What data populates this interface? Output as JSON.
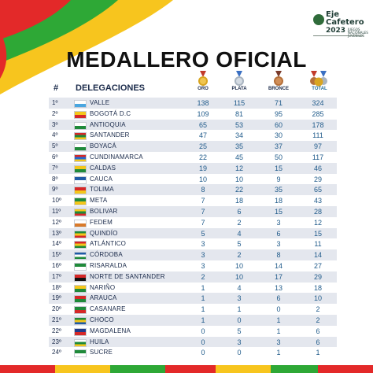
{
  "header": {
    "logo_line1": "Eje",
    "logo_line2": "Cafetero",
    "logo_line3": "2023",
    "logo_small": "JUEGOS NACIONALES JUVENILES",
    "title": "MEDALLERO OFICIAL"
  },
  "columns": {
    "hash": "#",
    "delegations": "DELEGACIONES",
    "oro": "ORO",
    "plata": "PLATA",
    "bronce": "BRONCE",
    "total": "TOTAL"
  },
  "colors": {
    "gold": "#d9a521",
    "silver": "#b8c2cc",
    "bronze": "#b5703a",
    "stripe_red": "#e32929",
    "stripe_green": "#2ea836",
    "stripe_yellow": "#f7c51e",
    "number_blue": "#1f5a8a"
  },
  "rows": [
    {
      "rank": "1º",
      "name": "VALLE",
      "oro": "138",
      "plata": "115",
      "bronce": "71",
      "total": "324",
      "flag": [
        "#ffffff",
        "#4aa6e0"
      ]
    },
    {
      "rank": "2º",
      "name": "BOGOTÁ D.C",
      "oro": "109",
      "plata": "81",
      "bronce": "95",
      "total": "285",
      "flag": [
        "#f4c61b",
        "#d62828"
      ]
    },
    {
      "rank": "3º",
      "name": "ANTIOQUIA",
      "oro": "65",
      "plata": "53",
      "bronce": "60",
      "total": "178",
      "flag": [
        "#ffffff",
        "#1f8a3a"
      ]
    },
    {
      "rank": "4º",
      "name": "SANTANDER",
      "oro": "47",
      "plata": "34",
      "bronce": "30",
      "total": "111",
      "flag": [
        "#d62828",
        "#1f8a3a",
        "#f4c61b"
      ]
    },
    {
      "rank": "5º",
      "name": "BOYACÁ",
      "oro": "25",
      "plata": "35",
      "bronce": "37",
      "total": "97",
      "flag": [
        "#ffffff",
        "#1f8a3a"
      ]
    },
    {
      "rank": "6º",
      "name": "CUNDINAMARCA",
      "oro": "22",
      "plata": "45",
      "bronce": "50",
      "total": "117",
      "flag": [
        "#d62828",
        "#1f6bd6",
        "#f4c61b"
      ]
    },
    {
      "rank": "7º",
      "name": "CALDAS",
      "oro": "19",
      "plata": "12",
      "bronce": "15",
      "total": "46",
      "flag": [
        "#f4c61b",
        "#1f8a3a"
      ]
    },
    {
      "rank": "8º",
      "name": "CAUCA",
      "oro": "10",
      "plata": "10",
      "bronce": "9",
      "total": "29",
      "flag": [
        "#1f5aa6",
        "#ffffff"
      ]
    },
    {
      "rank": "9º",
      "name": "TOLIMA",
      "oro": "8",
      "plata": "22",
      "bronce": "35",
      "total": "65",
      "flag": [
        "#d62828",
        "#f4c61b"
      ]
    },
    {
      "rank": "10º",
      "name": "META",
      "oro": "7",
      "plata": "18",
      "bronce": "18",
      "total": "43",
      "flag": [
        "#1f8a3a",
        "#f4c61b"
      ]
    },
    {
      "rank": "11º",
      "name": "BOLIVAR",
      "oro": "7",
      "plata": "6",
      "bronce": "15",
      "total": "28",
      "flag": [
        "#f4c61b",
        "#1f8a3a",
        "#d62828"
      ]
    },
    {
      "rank": "12º",
      "name": "FEDEM",
      "oro": "7",
      "plata": "2",
      "bronce": "3",
      "total": "12",
      "flag": [
        "#ffffff",
        "#d97a2a"
      ]
    },
    {
      "rank": "13º",
      "name": "QUINDÍO",
      "oro": "5",
      "plata": "4",
      "bronce": "6",
      "total": "15",
      "flag": [
        "#1f8a3a",
        "#f4c61b",
        "#d62828"
      ]
    },
    {
      "rank": "14º",
      "name": "ATLÁNTICO",
      "oro": "3",
      "plata": "5",
      "bronce": "3",
      "total": "11",
      "flag": [
        "#d62828",
        "#f4c61b",
        "#1f8a3a"
      ]
    },
    {
      "rank": "15º",
      "name": "CÓRDOBA",
      "oro": "3",
      "plata": "2",
      "bronce": "8",
      "total": "14",
      "flag": [
        "#1f5aa6",
        "#ffffff",
        "#1f8a3a"
      ]
    },
    {
      "rank": "16º",
      "name": "RISARALDA",
      "oro": "3",
      "plata": "10",
      "bronce": "14",
      "total": "27",
      "flag": [
        "#1f8a3a",
        "#ffffff"
      ]
    },
    {
      "rank": "17º",
      "name": "NORTE DE SANTANDER",
      "oro": "2",
      "plata": "10",
      "bronce": "17",
      "total": "29",
      "flag": [
        "#d62828",
        "#111111"
      ]
    },
    {
      "rank": "18º",
      "name": "NARIÑO",
      "oro": "1",
      "plata": "4",
      "bronce": "13",
      "total": "18",
      "flag": [
        "#f4c61b",
        "#1f8a3a"
      ]
    },
    {
      "rank": "19º",
      "name": "ARAUCA",
      "oro": "1",
      "plata": "3",
      "bronce": "6",
      "total": "10",
      "flag": [
        "#d62828",
        "#1f8a3a"
      ]
    },
    {
      "rank": "20º",
      "name": "CASANARE",
      "oro": "1",
      "plata": "1",
      "bronce": "0",
      "total": "2",
      "flag": [
        "#1f8a3a",
        "#d62828"
      ]
    },
    {
      "rank": "21º",
      "name": "CHOCO",
      "oro": "1",
      "plata": "0",
      "bronce": "1",
      "total": "2",
      "flag": [
        "#1f8a3a",
        "#f4c61b",
        "#1f5aa6"
      ]
    },
    {
      "rank": "22º",
      "name": "MAGDALENA",
      "oro": "0",
      "plata": "5",
      "bronce": "1",
      "total": "6",
      "flag": [
        "#1f3a8a",
        "#d62828"
      ]
    },
    {
      "rank": "23º",
      "name": "HUILA",
      "oro": "0",
      "plata": "3",
      "bronce": "3",
      "total": "6",
      "flag": [
        "#ffffff",
        "#1f8a3a",
        "#f4c61b"
      ]
    },
    {
      "rank": "24º",
      "name": "SUCRE",
      "oro": "0",
      "plata": "0",
      "bronce": "1",
      "total": "1",
      "flag": [
        "#1f8a3a",
        "#ffffff"
      ]
    }
  ]
}
